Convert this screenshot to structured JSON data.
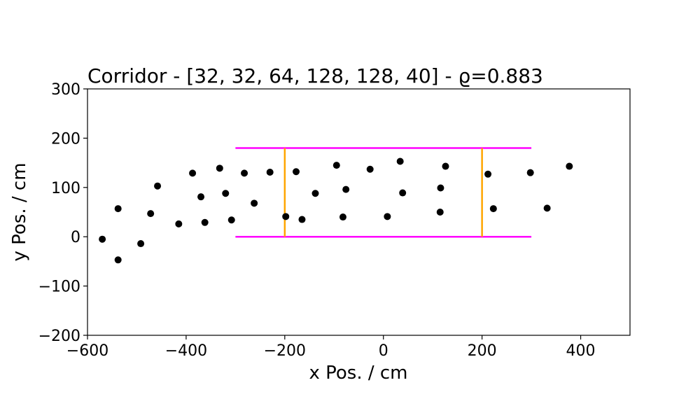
{
  "chart_data": {
    "type": "scatter",
    "title": "Corridor - [32, 32, 64, 128, 128, 40] - ϱ=0.883",
    "xlabel": "x Pos. / cm",
    "ylabel": "y Pos. / cm",
    "xlim": [
      -600,
      500
    ],
    "ylim": [
      -200,
      300
    ],
    "xticks": [
      -600,
      -400,
      -200,
      0,
      200,
      400
    ],
    "yticks": [
      -200,
      -100,
      0,
      100,
      200,
      300
    ],
    "xtick_labels": [
      "−600",
      "−400",
      "−200",
      "0",
      "200",
      "400"
    ],
    "ytick_labels": [
      "−200",
      "−100",
      "0",
      "100",
      "200",
      "300"
    ],
    "grid": false,
    "colors": {
      "points": "#000000",
      "corridor_walls": "#ff00ff",
      "gates": "#ffa500"
    },
    "corridor_walls": [
      {
        "x": [
          -300,
          300
        ],
        "y": [
          180,
          180
        ]
      },
      {
        "x": [
          -300,
          300
        ],
        "y": [
          0,
          0
        ]
      }
    ],
    "gates": [
      {
        "x": [
          -200,
          -200
        ],
        "y": [
          0,
          180
        ]
      },
      {
        "x": [
          200,
          200
        ],
        "y": [
          0,
          180
        ]
      }
    ],
    "points": [
      {
        "x": -570,
        "y": -5
      },
      {
        "x": -538,
        "y": 57
      },
      {
        "x": -538,
        "y": -47
      },
      {
        "x": -492,
        "y": -14
      },
      {
        "x": -472,
        "y": 47
      },
      {
        "x": -458,
        "y": 103
      },
      {
        "x": -415,
        "y": 26
      },
      {
        "x": -387,
        "y": 129
      },
      {
        "x": -370,
        "y": 81
      },
      {
        "x": -362,
        "y": 29
      },
      {
        "x": -332,
        "y": 139
      },
      {
        "x": -320,
        "y": 88
      },
      {
        "x": -308,
        "y": 34
      },
      {
        "x": -282,
        "y": 129
      },
      {
        "x": -262,
        "y": 68
      },
      {
        "x": -230,
        "y": 131
      },
      {
        "x": -198,
        "y": 41
      },
      {
        "x": -177,
        "y": 132
      },
      {
        "x": -165,
        "y": 35
      },
      {
        "x": -138,
        "y": 88
      },
      {
        "x": -95,
        "y": 145
      },
      {
        "x": -82,
        "y": 40
      },
      {
        "x": -76,
        "y": 96
      },
      {
        "x": -27,
        "y": 137
      },
      {
        "x": 8,
        "y": 41
      },
      {
        "x": 34,
        "y": 153
      },
      {
        "x": 39,
        "y": 89
      },
      {
        "x": 115,
        "y": 50
      },
      {
        "x": 116,
        "y": 99
      },
      {
        "x": 126,
        "y": 143
      },
      {
        "x": 212,
        "y": 127
      },
      {
        "x": 223,
        "y": 57
      },
      {
        "x": 298,
        "y": 130
      },
      {
        "x": 332,
        "y": 58
      },
      {
        "x": 377,
        "y": 143
      }
    ]
  }
}
